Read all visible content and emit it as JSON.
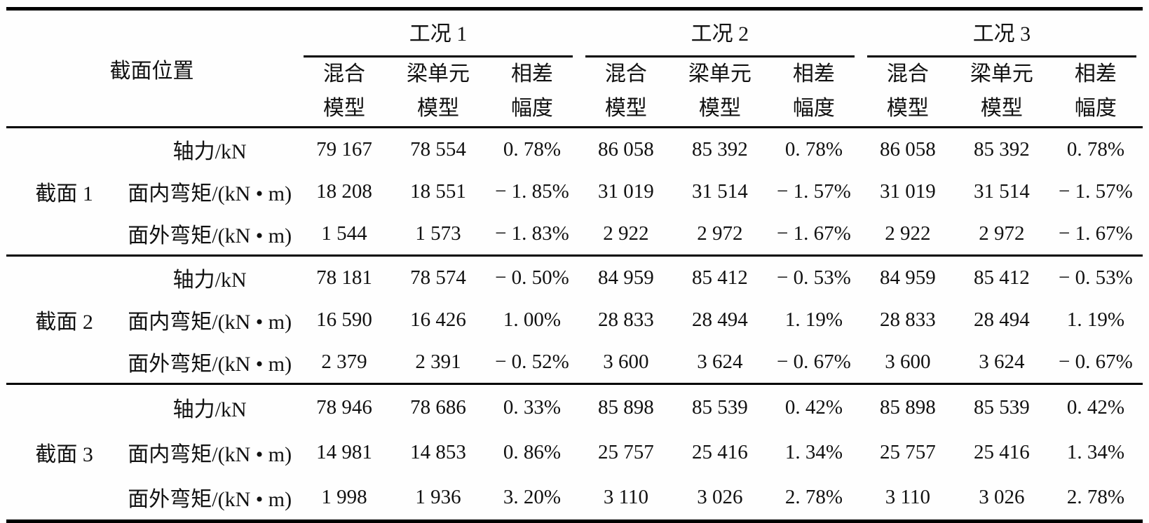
{
  "table": {
    "corner_header": "截面位置",
    "groups": [
      {
        "label": "工况 1"
      },
      {
        "label": "工况 2"
      },
      {
        "label": "工况 3"
      }
    ],
    "sub_headers": [
      "混合\n模型",
      "梁单元\n模型",
      "相差\n幅度"
    ],
    "sections": [
      {
        "label": "截面 1",
        "rows": [
          {
            "quantity": "轴力/kN",
            "values": [
              "79 167",
              "78 554",
              "0. 78%",
              "86 058",
              "85 392",
              "0. 78%",
              "86 058",
              "85 392",
              "0. 78%"
            ]
          },
          {
            "quantity": "面内弯矩/(kN • m)",
            "values": [
              "18 208",
              "18 551",
              "− 1. 85%",
              "31 019",
              "31 514",
              "− 1. 57%",
              "31 019",
              "31 514",
              "− 1. 57%"
            ]
          },
          {
            "quantity": "面外弯矩/(kN • m)",
            "values": [
              "1 544",
              "1 573",
              "− 1. 83%",
              "2 922",
              "2 972",
              "− 1. 67%",
              "2 922",
              "2 972",
              "− 1. 67%"
            ]
          }
        ]
      },
      {
        "label": "截面 2",
        "rows": [
          {
            "quantity": "轴力/kN",
            "values": [
              "78 181",
              "78 574",
              "− 0. 50%",
              "84 959",
              "85 412",
              "− 0. 53%",
              "84 959",
              "85 412",
              "− 0. 53%"
            ]
          },
          {
            "quantity": "面内弯矩/(kN • m)",
            "values": [
              "16 590",
              "16 426",
              "1. 00%",
              "28 833",
              "28 494",
              "1. 19%",
              "28 833",
              "28 494",
              "1. 19%"
            ]
          },
          {
            "quantity": "面外弯矩/(kN • m)",
            "values": [
              "2 379",
              "2 391",
              "− 0. 52%",
              "3 600",
              "3 624",
              "− 0. 67%",
              "3 600",
              "3 624",
              "− 0. 67%"
            ]
          }
        ]
      },
      {
        "label": "截面 3",
        "rows": [
          {
            "quantity": "轴力/kN",
            "values": [
              "78 946",
              "78 686",
              "0. 33%",
              "85 898",
              "85 539",
              "0. 42%",
              "85 898",
              "85 539",
              "0. 42%"
            ]
          },
          {
            "quantity": "面内弯矩/(kN • m)",
            "values": [
              "14 981",
              "14 853",
              "0. 86%",
              "25 757",
              "25 416",
              "1. 34%",
              "25 757",
              "25 416",
              "1. 34%"
            ]
          },
          {
            "quantity": "面外弯矩/(kN • m)",
            "values": [
              "1 998",
              "1 936",
              "3. 20%",
              "3 110",
              "3 026",
              "2. 78%",
              "3 110",
              "3 026",
              "2. 78%"
            ]
          }
        ]
      }
    ]
  }
}
